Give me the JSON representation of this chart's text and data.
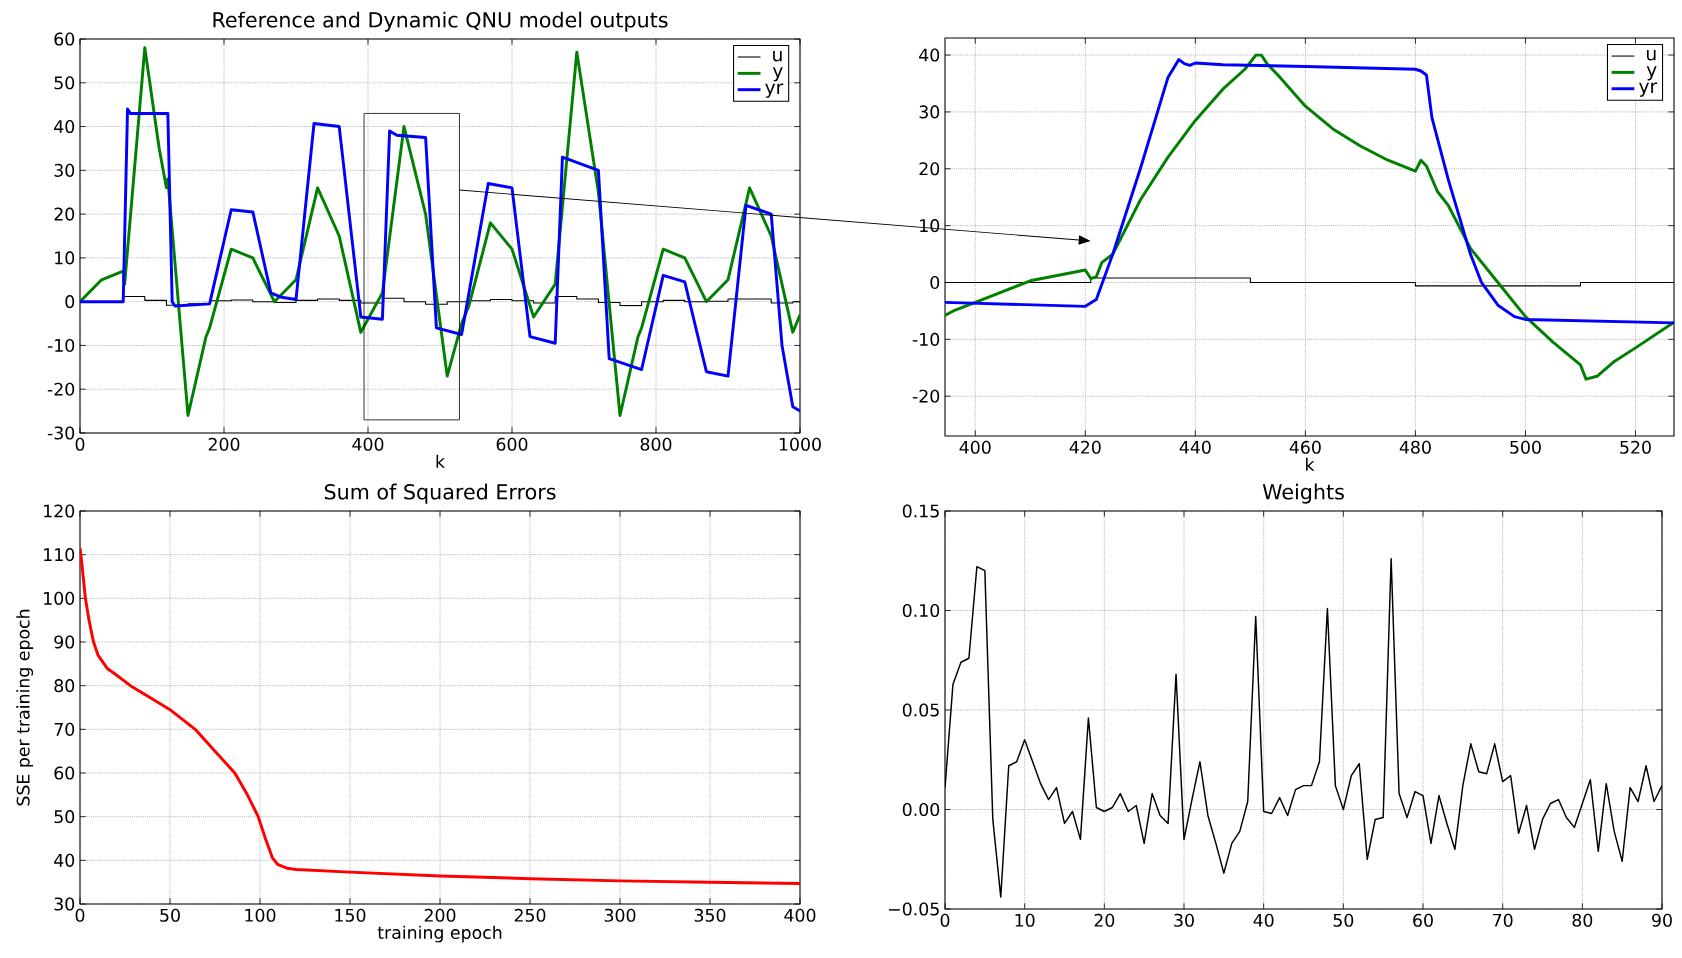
{
  "chart_data": [
    {
      "type": "line",
      "title": "Reference and Dynamic QNU model outputs",
      "xlabel": "k",
      "xlim": [
        0,
        1000
      ],
      "ylim": [
        -30,
        60
      ],
      "xticks": [
        0,
        200,
        400,
        600,
        800,
        1000
      ],
      "yticks": [
        -30,
        -20,
        -10,
        0,
        10,
        20,
        30,
        40,
        50,
        60
      ],
      "grid": true,
      "legend": "top right",
      "series": [
        {
          "name": "u",
          "type": "step",
          "color": "#000000",
          "x": [
            0,
            30,
            60,
            90,
            120,
            150,
            180,
            210,
            240,
            270,
            300,
            330,
            360,
            390,
            420,
            450,
            480,
            510,
            540,
            570,
            600,
            630,
            660,
            690,
            720,
            750,
            780,
            810,
            840,
            870,
            900,
            930,
            960,
            990,
            1000
          ],
          "values": [
            0,
            0,
            1.2,
            0.3,
            -0.8,
            -0.5,
            0.2,
            0.4,
            0,
            -0.2,
            0.3,
            0.6,
            0.3,
            -0.3,
            0.8,
            0,
            -0.6,
            0,
            0.2,
            0.5,
            0.2,
            -0.3,
            1.2,
            0.6,
            -0.2,
            -0.9,
            0,
            0.3,
            0,
            0.1,
            0.6,
            0.6,
            -0.3,
            0,
            0
          ]
        },
        {
          "name": "y",
          "color": "#008000",
          "x": [
            0,
            30,
            60,
            62,
            90,
            110,
            120,
            122,
            150,
            175,
            180,
            210,
            240,
            270,
            300,
            330,
            360,
            390,
            420,
            450,
            480,
            510,
            530,
            540,
            570,
            600,
            630,
            660,
            690,
            720,
            750,
            775,
            780,
            810,
            840,
            870,
            900,
            930,
            960,
            990,
            1000
          ],
          "values": [
            0,
            5,
            7,
            4,
            58,
            35,
            26,
            28,
            -26,
            -8,
            -6,
            12,
            10,
            0,
            5,
            26,
            15,
            -7,
            2,
            40,
            20,
            -17,
            -5,
            -1,
            18,
            12,
            -3.5,
            4,
            57,
            25,
            -26,
            -8,
            -6,
            12,
            10,
            0,
            5,
            26,
            15,
            -7,
            -3
          ]
        },
        {
          "name": "yr",
          "color": "#0000ff",
          "x": [
            0,
            60,
            66,
            70,
            122,
            128,
            132,
            180,
            210,
            240,
            265,
            280,
            300,
            325,
            360,
            390,
            420,
            430,
            440,
            480,
            495,
            530,
            567,
            600,
            625,
            660,
            670,
            720,
            735,
            780,
            810,
            840,
            870,
            900,
            925,
            960,
            975,
            990,
            1000
          ],
          "values": [
            0,
            0,
            44,
            43,
            43,
            0,
            -1,
            -0.5,
            21,
            20.5,
            2,
            1,
            0.5,
            40.7,
            40,
            -3.5,
            -4,
            39,
            38,
            37.5,
            -6,
            -7.5,
            27,
            26,
            -8,
            -9.5,
            33,
            30,
            -13,
            -15.5,
            6,
            4.5,
            -16,
            -17,
            22,
            20,
            -10,
            -24,
            -25
          ]
        }
      ]
    },
    {
      "type": "line",
      "xlabel": "k",
      "xlim": [
        394.5,
        527
      ],
      "ylim": [
        -27,
        43
      ],
      "xticks": [
        400,
        420,
        440,
        460,
        480,
        500,
        520
      ],
      "yticks": [
        -20,
        -10,
        0,
        10,
        20,
        30,
        40
      ],
      "grid": true,
      "legend": "top right",
      "series": [
        {
          "name": "u",
          "type": "step",
          "color": "#000000",
          "x": [
            394.5,
            421,
            450,
            480,
            510,
            527
          ],
          "values": [
            0,
            0.8,
            0,
            -0.6,
            0,
            0
          ]
        },
        {
          "name": "y",
          "color": "#008000",
          "x": [
            394.5,
            396,
            400,
            410,
            420,
            421,
            422,
            423,
            425,
            430,
            435,
            440,
            445,
            449,
            451,
            452,
            453,
            455,
            460,
            465,
            470,
            475,
            480,
            481,
            482,
            484,
            486,
            490,
            495,
            500,
            505,
            510,
            511,
            513,
            516,
            520,
            527
          ],
          "values": [
            -5.8,
            -5,
            -3.5,
            0.3,
            2.2,
            0.7,
            1,
            3.5,
            5,
            14.5,
            22,
            28.5,
            34,
            37.5,
            40,
            40,
            38.5,
            36.5,
            31,
            27,
            24,
            21.5,
            19.6,
            21.5,
            20.5,
            16,
            13.5,
            6,
            0,
            -6,
            -10.5,
            -14.5,
            -17,
            -16.5,
            -14,
            -11.5,
            -7
          ]
        },
        {
          "name": "yr",
          "color": "#0000ff",
          "x": [
            394.5,
            420,
            422,
            425,
            430,
            435,
            437,
            438,
            439,
            440,
            445,
            460,
            480,
            481,
            482,
            483,
            486,
            490,
            492,
            495,
            498,
            500,
            527
          ],
          "values": [
            -3.5,
            -4.2,
            -3,
            5,
            20,
            36,
            39.2,
            38.5,
            38.2,
            38.6,
            38.3,
            38,
            37.5,
            37.2,
            36.5,
            29,
            18,
            5,
            0,
            -4,
            -6,
            -6.5,
            -7.1
          ]
        }
      ]
    },
    {
      "type": "line",
      "title": "Sum of Squared Errors",
      "xlabel": "training epoch",
      "ylabel": "SSE per training epoch",
      "xlim": [
        0,
        400
      ],
      "ylim": [
        30,
        120
      ],
      "xticks": [
        0,
        50,
        100,
        150,
        200,
        250,
        300,
        350,
        400
      ],
      "yticks": [
        30,
        40,
        50,
        60,
        70,
        80,
        90,
        100,
        110,
        120
      ],
      "grid": true,
      "color": "#ff0000",
      "x": [
        0,
        1,
        3,
        5,
        7.5,
        10,
        15,
        20,
        28,
        40,
        50,
        64,
        75,
        86,
        93,
        99,
        103,
        107,
        110,
        115,
        120,
        150,
        200,
        250,
        300,
        350,
        400
      ],
      "values": [
        111.5,
        108,
        100,
        95,
        90,
        87,
        84,
        82.5,
        80,
        77,
        74.5,
        70,
        65,
        60,
        55,
        50,
        45,
        40.5,
        39,
        38.2,
        37.9,
        37.3,
        36.4,
        35.8,
        35.3,
        35,
        34.7
      ]
    },
    {
      "type": "line",
      "title": "Weights",
      "xlim": [
        0,
        90
      ],
      "ylim": [
        -0.05,
        0.15
      ],
      "xticks": [
        0,
        10,
        20,
        30,
        40,
        50,
        60,
        70,
        80,
        90
      ],
      "yticks": [
        {
          "value": -0.05,
          "label": "−0.05"
        },
        {
          "value": 0,
          "label": "0.00"
        },
        {
          "value": 0.05,
          "label": "0.05"
        },
        {
          "value": 0.1,
          "label": "0.10"
        },
        {
          "value": 0.15,
          "label": "0.15"
        }
      ],
      "grid": true,
      "color": "#000000",
      "x": [
        0,
        1,
        2,
        3,
        4,
        5,
        6,
        7,
        8,
        9,
        10,
        11,
        12,
        13,
        14,
        15,
        16,
        17,
        18,
        19,
        20,
        21,
        22,
        23,
        24,
        25,
        26,
        27,
        28,
        29,
        30,
        31,
        32,
        33,
        34,
        35,
        36,
        37,
        38,
        39,
        40,
        41,
        42,
        43,
        44,
        45,
        46,
        47,
        48,
        49,
        50,
        51,
        52,
        53,
        54,
        55,
        56,
        57,
        58,
        59,
        60,
        61,
        62,
        63,
        64,
        65,
        66,
        67,
        68,
        69,
        70,
        71,
        72,
        73,
        74,
        75,
        76,
        77,
        78,
        79,
        80,
        81,
        82,
        83,
        84,
        85,
        86,
        87,
        88,
        89,
        90
      ],
      "values": [
        0.011,
        0.063,
        0.074,
        0.076,
        0.122,
        0.12,
        -0.005,
        -0.044,
        0.022,
        0.024,
        0.035,
        0.024,
        0.013,
        0.005,
        0.011,
        -0.007,
        -0.001,
        -0.015,
        0.046,
        0.001,
        -0.001,
        0.001,
        0.008,
        -0.001,
        0.002,
        -0.017,
        0.008,
        -0.003,
        -0.007,
        0.068,
        -0.015,
        0.005,
        0.024,
        -0.003,
        -0.017,
        -0.032,
        -0.017,
        -0.011,
        0.004,
        0.097,
        -0.001,
        -0.002,
        0.006,
        -0.003,
        0.01,
        0.012,
        0.012,
        0.024,
        0.101,
        0.012,
        0,
        0.017,
        0.023,
        -0.025,
        -0.005,
        -0.004,
        0.126,
        0.008,
        -0.004,
        0.009,
        0.007,
        -0.017,
        0.007,
        -0.007,
        -0.02,
        0.012,
        0.033,
        0.019,
        0.018,
        0.033,
        0.014,
        0.017,
        -0.012,
        0.002,
        -0.02,
        -0.005,
        0.003,
        0.005,
        -0.004,
        -0.009,
        0.003,
        0.015,
        -0.021,
        0.013,
        -0.011,
        -0.026,
        0.011,
        0.004,
        0.022,
        0.004,
        0.012
      ]
    }
  ]
}
